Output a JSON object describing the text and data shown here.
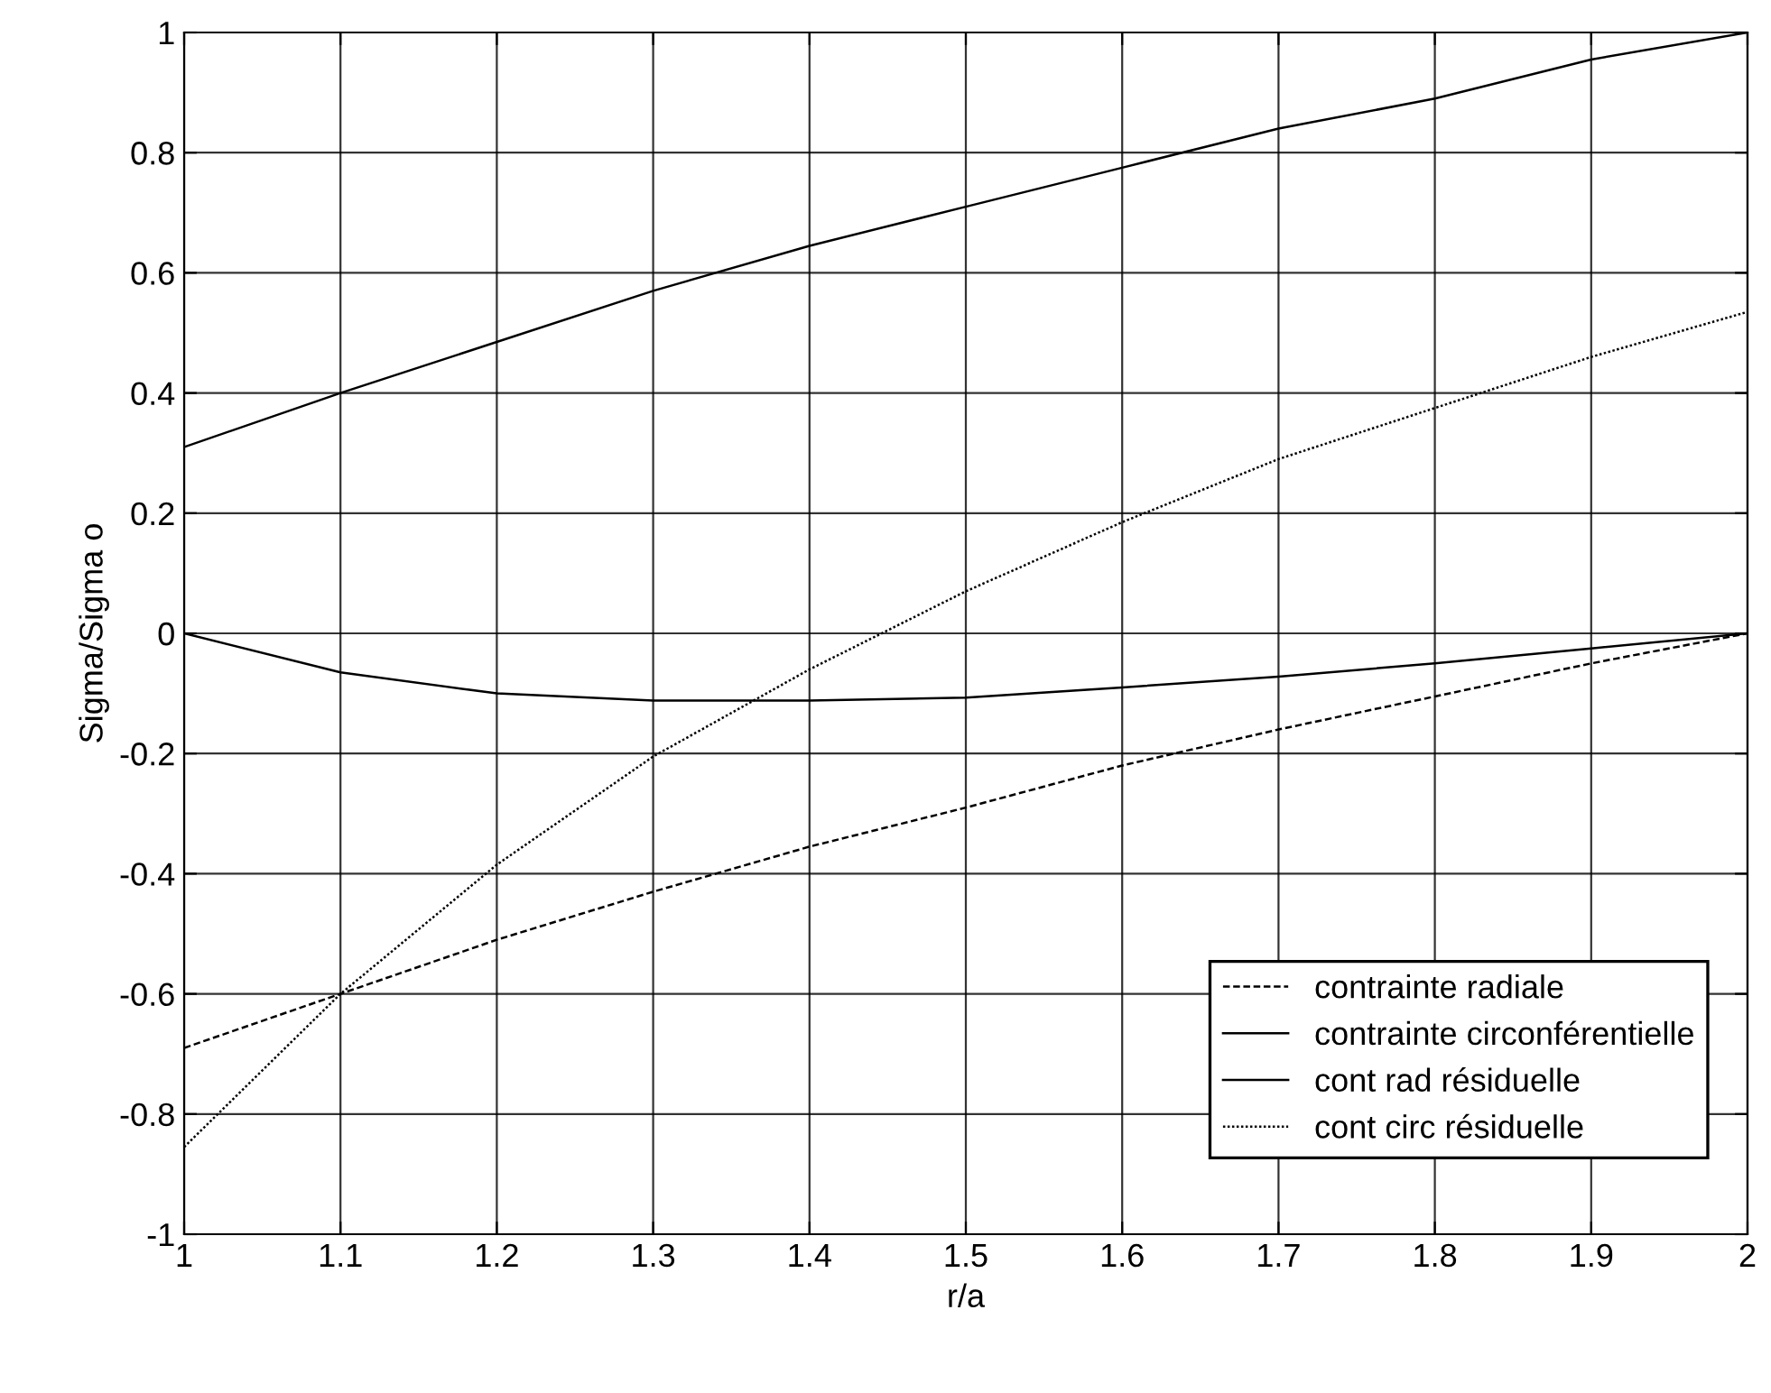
{
  "chart_data": {
    "type": "line",
    "xlabel": "r/a",
    "ylabel": "Sigma/Sigma o",
    "x": [
      1,
      1.1,
      1.2,
      1.3,
      1.4,
      1.5,
      1.6,
      1.7,
      1.8,
      1.9,
      2
    ],
    "series": [
      {
        "name": "contrainte radiale",
        "color": "#000000",
        "line_style": "dashed",
        "values": [
          -0.69,
          -0.6,
          -0.51,
          -0.43,
          -0.355,
          -0.29,
          -0.22,
          -0.16,
          -0.105,
          -0.05,
          0
        ]
      },
      {
        "name": "contrainte circonférentielle",
        "color": "#000000",
        "line_style": "solid",
        "values": [
          0.31,
          0.4,
          0.485,
          0.57,
          0.645,
          0.71,
          0.775,
          0.84,
          0.89,
          0.955,
          1.0
        ]
      },
      {
        "name": "cont rad résiduelle",
        "color": "#000000",
        "line_style": "solid",
        "values": [
          0,
          -0.065,
          -0.1,
          -0.112,
          -0.112,
          -0.107,
          -0.09,
          -0.072,
          -0.05,
          -0.025,
          0
        ]
      },
      {
        "name": "cont circ résiduelle",
        "color": "#000000",
        "line_style": "dotted",
        "values": [
          -0.855,
          -0.6,
          -0.385,
          -0.205,
          -0.06,
          0.07,
          0.185,
          0.29,
          0.375,
          0.46,
          0.535
        ]
      }
    ],
    "xlim": [
      1,
      2
    ],
    "xticks": [
      1,
      1.1,
      1.2,
      1.3,
      1.4,
      1.5,
      1.6,
      1.7,
      1.8,
      1.9,
      2
    ],
    "ylim": [
      -1,
      1
    ],
    "yticks": [
      -1,
      -0.8,
      -0.6,
      -0.4,
      -0.2,
      0,
      0.2,
      0.4,
      0.6,
      0.8,
      1
    ],
    "grid": true,
    "legend": "bottom right",
    "marker": "none"
  }
}
